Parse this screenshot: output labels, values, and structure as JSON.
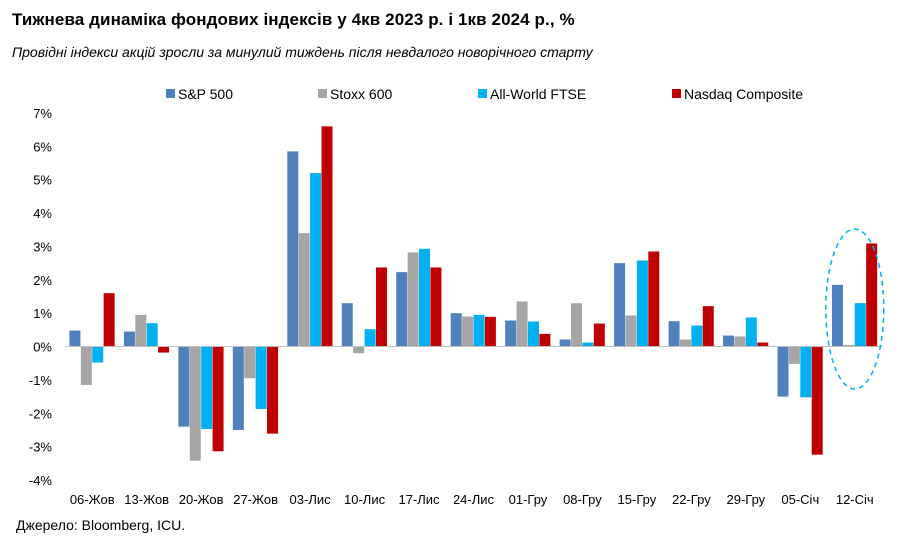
{
  "header": {
    "title": "Тижнева динаміка фондових індексів у 4кв 2023 р. і 1кв 2024 р., %",
    "subtitle": "Провідні індекси акцій зросли за минулий тиждень після невдалого новорічного старту"
  },
  "footer": {
    "source": "Джерело: Bloomberg, ICU."
  },
  "chart_data": {
    "type": "bar",
    "title": "Тижнева динаміка фондових індексів у 4кв 2023 р. і 1кв 2024 р., %",
    "subtitle": "Провідні індекси акцій зросли за минулий тиждень після невдалого новорічного старту",
    "xlabel": "",
    "ylabel": "",
    "ylim": [
      -4,
      7
    ],
    "yticks": [
      -4,
      -3,
      -2,
      -1,
      0,
      1,
      2,
      3,
      4,
      5,
      6,
      7
    ],
    "ytick_format": "percent",
    "grid": false,
    "legend_position": "top",
    "categories": [
      "06-Жов",
      "13-Жов",
      "20-Жов",
      "27-Жов",
      "03-Лис",
      "10-Лис",
      "17-Лис",
      "24-Лис",
      "01-Гру",
      "08-Гру",
      "15-Гру",
      "22-Гру",
      "29-Гру",
      "05-Січ",
      "12-Січ"
    ],
    "series": [
      {
        "name": "S&P 500",
        "color": "#4f81bd",
        "values": [
          0.48,
          0.45,
          -2.4,
          -2.5,
          5.85,
          1.3,
          2.23,
          1.0,
          0.78,
          0.21,
          2.5,
          0.76,
          0.33,
          -1.5,
          1.85
        ]
      },
      {
        "name": "Stoxx 600",
        "color": "#a5a5a5",
        "values": [
          -1.15,
          0.95,
          -3.42,
          -0.95,
          3.4,
          -0.2,
          2.82,
          0.9,
          1.35,
          1.3,
          0.93,
          0.21,
          0.3,
          -0.52,
          0.05
        ]
      },
      {
        "name": "All-World FTSE",
        "color": "#00b0f0",
        "values": [
          -0.48,
          0.7,
          -2.47,
          -1.87,
          5.2,
          0.52,
          2.93,
          0.95,
          0.75,
          0.12,
          2.58,
          0.63,
          0.87,
          -1.52,
          1.3
        ]
      },
      {
        "name": "Nasdaq Composite",
        "color": "#c00000",
        "values": [
          1.6,
          -0.18,
          -3.14,
          -2.61,
          6.6,
          2.37,
          2.37,
          0.89,
          0.38,
          0.69,
          2.85,
          1.21,
          0.12,
          -3.24,
          3.09
        ]
      }
    ],
    "annotations": [
      {
        "type": "dashed-ellipse",
        "target_category": "12-Січ",
        "color": "#00b0f0"
      }
    ]
  }
}
